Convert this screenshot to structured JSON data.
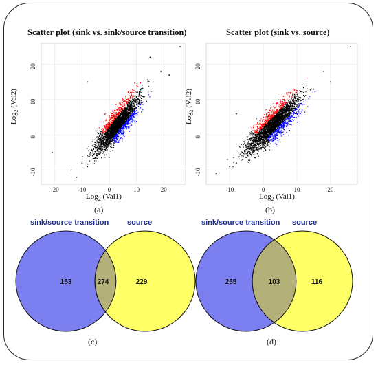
{
  "chart_data": [
    {
      "type": "scatter",
      "panel": "(a)",
      "title": "Scatter plot (sink vs. sink/source transition)",
      "xlabel": "Log2 (Val1)",
      "ylabel": "Log2 (Val2)",
      "xlim": [
        -25,
        28
      ],
      "ylim": [
        -14,
        26
      ],
      "xticks": [
        -20,
        -10,
        0,
        10,
        20
      ],
      "yticks": [
        -10,
        0,
        10,
        20
      ],
      "grid": true,
      "series": [
        {
          "color": "#000000",
          "points": [
            [
              -21,
              -5
            ],
            [
              -14,
              -10
            ],
            [
              -10,
              -8
            ],
            [
              -12,
              -12
            ],
            [
              -8,
              -9
            ],
            [
              -6,
              -6
            ],
            [
              -4,
              -4
            ],
            [
              -3,
              -2
            ],
            [
              -2,
              -1
            ],
            [
              -1,
              0
            ],
            [
              0,
              1
            ],
            [
              1,
              2
            ],
            [
              2,
              3
            ],
            [
              3,
              4
            ],
            [
              4,
              5
            ],
            [
              5,
              6
            ],
            [
              6,
              7
            ],
            [
              7,
              8
            ],
            [
              8,
              9
            ],
            [
              9,
              10
            ],
            [
              10,
              11
            ],
            [
              12,
              13
            ],
            [
              14,
              15
            ],
            [
              16,
              15
            ],
            [
              19,
              18
            ],
            [
              22,
              17
            ],
            [
              26,
              25
            ],
            [
              15,
              22
            ],
            [
              -8,
              15
            ]
          ]
        },
        {
          "color": "#ff0000",
          "points": [
            [
              0,
              4
            ],
            [
              1,
              5
            ],
            [
              2,
              7
            ],
            [
              3,
              8
            ],
            [
              4,
              9
            ],
            [
              5,
              10
            ],
            [
              6,
              11
            ],
            [
              7,
              12
            ],
            [
              8,
              12
            ],
            [
              3,
              6
            ],
            [
              5,
              8
            ],
            [
              1,
              6
            ]
          ]
        },
        {
          "color": "#0000ff",
          "points": [
            [
              2,
              -1
            ],
            [
              3,
              0
            ],
            [
              4,
              1
            ],
            [
              5,
              2
            ],
            [
              6,
              3
            ],
            [
              7,
              4
            ],
            [
              8,
              5
            ],
            [
              9,
              6
            ],
            [
              10,
              6
            ],
            [
              5,
              0
            ],
            [
              7,
              2
            ],
            [
              4,
              -1
            ]
          ]
        }
      ]
    },
    {
      "type": "scatter",
      "panel": "(b)",
      "title": "Scatter plot (sink vs. source)",
      "xlabel": "Log2 (Val1)",
      "ylabel": "Log2 (Val2)",
      "xlim": [
        -17,
        28
      ],
      "ylim": [
        -14,
        26
      ],
      "xticks": [
        -10,
        0,
        10,
        20
      ],
      "yticks": [
        -10,
        0,
        10,
        20
      ],
      "grid": true,
      "series": [
        {
          "color": "#000000",
          "points": [
            [
              -14,
              -11
            ],
            [
              -10,
              -9
            ],
            [
              -8,
              -8
            ],
            [
              -6,
              -6
            ],
            [
              -4,
              -4
            ],
            [
              -3,
              -2
            ],
            [
              -2,
              -1
            ],
            [
              -1,
              0
            ],
            [
              0,
              1
            ],
            [
              1,
              2
            ],
            [
              2,
              3
            ],
            [
              3,
              4
            ],
            [
              4,
              5
            ],
            [
              5,
              6
            ],
            [
              6,
              7
            ],
            [
              7,
              8
            ],
            [
              8,
              9
            ],
            [
              9,
              10
            ],
            [
              10,
              11
            ],
            [
              12,
              12
            ],
            [
              15,
              13
            ],
            [
              18,
              18
            ],
            [
              20,
              15
            ],
            [
              26,
              25
            ],
            [
              -8,
              6
            ]
          ]
        },
        {
          "color": "#ff0000",
          "points": [
            [
              -1,
              4
            ],
            [
              0,
              5
            ],
            [
              1,
              6
            ],
            [
              2,
              7
            ],
            [
              3,
              8
            ],
            [
              4,
              9
            ],
            [
              5,
              10
            ],
            [
              6,
              11
            ],
            [
              7,
              12
            ],
            [
              8,
              12
            ],
            [
              3,
              6
            ],
            [
              1,
              3
            ]
          ]
        },
        {
          "color": "#0000ff",
          "points": [
            [
              3,
              -1
            ],
            [
              4,
              0
            ],
            [
              5,
              1
            ],
            [
              6,
              2
            ],
            [
              7,
              3
            ],
            [
              8,
              4
            ],
            [
              9,
              5
            ],
            [
              10,
              6
            ],
            [
              11,
              6
            ],
            [
              6,
              0
            ],
            [
              8,
              3
            ],
            [
              5,
              -2
            ]
          ]
        }
      ]
    },
    {
      "type": "venn",
      "panel": "(c)",
      "sets": [
        "sink/source transition",
        "source"
      ],
      "values": {
        "left_only": 153,
        "intersection": 274,
        "right_only": 229
      },
      "colors": {
        "left": "#7b7ff0",
        "right": "#ffff66",
        "overlap": "#b3b07a"
      }
    },
    {
      "type": "venn",
      "panel": "(d)",
      "sets": [
        "sink/source transition",
        "source"
      ],
      "values": {
        "left_only": 255,
        "intersection": 103,
        "right_only": 116
      },
      "colors": {
        "left": "#7b7ff0",
        "right": "#ffff66",
        "overlap": "#b3b07a"
      }
    }
  ]
}
